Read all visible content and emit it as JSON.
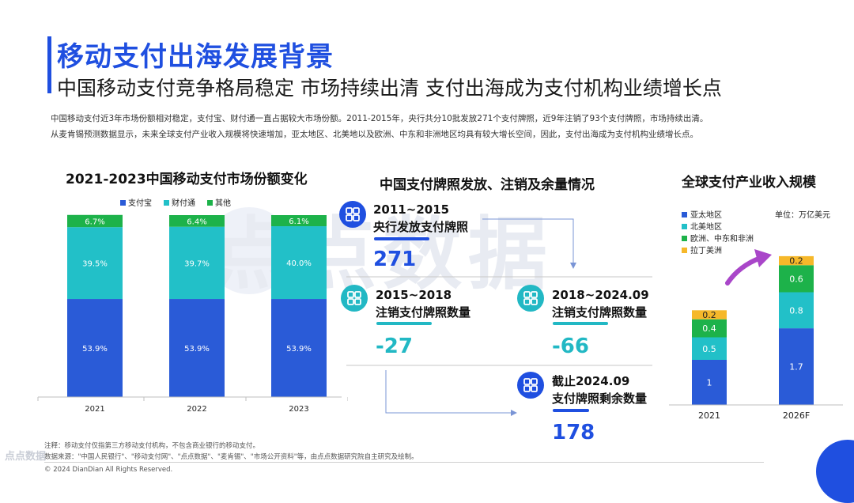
{
  "header": {
    "title": "移动支付出海发展背景",
    "subtitle": "中国移动支付竞争格局稳定 市场持续出清 支付出海成为支付机构业绩增长点"
  },
  "intro": {
    "line1": "中国移动支付近3年市场份额相对稳定，支付宝、财付通一直占据较大市场份额。2011-2015年，央行共分10批发放271个支付牌照，近9年注销了93个支付牌照，市场持续出清。",
    "line2": "从麦肯锡预测数据显示，未来全球支付产业收入规模将快速增加，亚太地区、北美地以及欧洲、中东和非洲地区均具有较大增长空间，因此，支付出海成为支付机构业绩增长点。"
  },
  "watermark": "点点数据",
  "chart_data": [
    {
      "type": "bar",
      "stacked": true,
      "title": "2021-2023中国移动支付市场份额变化",
      "categories": [
        "2021",
        "2022",
        "2023"
      ],
      "series": [
        {
          "name": "支付宝",
          "values": [
            53.9,
            53.9,
            53.9
          ],
          "labels": [
            "53.9%",
            "53.9%",
            "53.9%"
          ],
          "color": "#2a5bd7"
        },
        {
          "name": "财付通",
          "values": [
            39.5,
            39.7,
            40.0
          ],
          "labels": [
            "39.5%",
            "39.7%",
            "40.0%"
          ],
          "color": "#22c0c8"
        },
        {
          "name": "其他",
          "values": [
            6.7,
            6.4,
            6.1
          ],
          "labels": [
            "6.7%",
            "6.4%",
            "6.1%"
          ],
          "color": "#1db24a"
        }
      ],
      "legend": "top"
    },
    {
      "type": "bar",
      "stacked": true,
      "title": "全球支付产业收入规模",
      "unit": "单位：万亿美元",
      "categories": [
        "2021",
        "2026F"
      ],
      "series": [
        {
          "name": "亚太地区",
          "values": [
            1,
            1.7
          ],
          "color": "#2a5bd7"
        },
        {
          "name": "北美地区",
          "values": [
            0.5,
            0.8
          ],
          "color": "#22c0c8"
        },
        {
          "name": "欧洲、中东和非洲",
          "values": [
            0.4,
            0.6
          ],
          "color": "#1db24a"
        },
        {
          "name": "拉丁美洲",
          "values": [
            0.2,
            0.2
          ],
          "color": "#f6b82a"
        }
      ],
      "legend": "top-left"
    }
  ],
  "license": {
    "title": "中国支付牌照发放、注销及余量情况",
    "nodes": [
      {
        "period": "2011~2015",
        "desc": "央行发放支付牌照",
        "value": "271",
        "color": "#1f4fe0"
      },
      {
        "period": "2015~2018",
        "desc": "注销支付牌照数量",
        "value": "-27",
        "color": "#22b8c4"
      },
      {
        "period": "2018~2024.09",
        "desc": "注销支付牌照数量",
        "value": "-66",
        "color": "#22b8c4"
      },
      {
        "period": "截止2024.09",
        "desc": "支付牌照剩余数量",
        "value": "178",
        "color": "#1f4fe0"
      }
    ]
  },
  "footer": {
    "note": "注释：移动支付仅指第三方移动支付机构，不包含商业银行的移动支付。",
    "source": "数据来源：\"中国人民银行\"、\"移动支付网\"、\"点点数据\"、\"麦肯锡\"、\"市场公开资料\"等，由点点数据研究院自主研究及绘制。",
    "copyright": "© 2024 DianDian All Rights Reserved.",
    "logo_text": "点点数据"
  }
}
